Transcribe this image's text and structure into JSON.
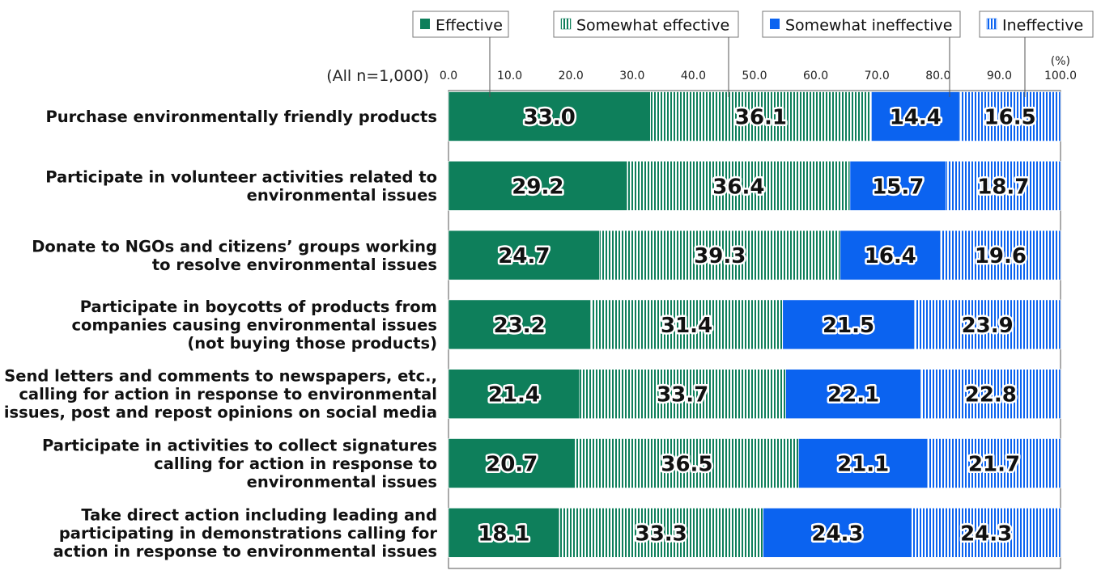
{
  "chart_data": {
    "type": "bar",
    "orientation": "horizontal",
    "stacked": true,
    "sample_label": "(All n=1,000)",
    "unit_label": "(%)",
    "xlim": [
      0,
      100
    ],
    "xticks": [
      "0.0",
      "10.0",
      "20.0",
      "30.0",
      "40.0",
      "50.0",
      "60.0",
      "70.0",
      "80.0",
      "90.0",
      "100.0"
    ],
    "legend_position": "top",
    "categories": [
      [
        "Purchase environmentally friendly products"
      ],
      [
        "Participate in volunteer activities related to",
        "environmental issues"
      ],
      [
        "Donate to NGOs and citizens’ groups working",
        "to resolve environmental issues"
      ],
      [
        "Participate in boycotts of products from",
        "companies causing environmental issues",
        "(not buying those products)"
      ],
      [
        "Send letters and comments to newspapers, etc.,",
        "calling for action in response to environmental",
        "issues, post and repost opinions on social media"
      ],
      [
        "Participate in activities to collect signatures",
        "calling for action in response to",
        "environmental issues"
      ],
      [
        "Take direct action including leading and",
        "participating in demonstrations calling for",
        "action in response to environmental issues"
      ]
    ],
    "series": [
      {
        "name": "Effective",
        "color": "#0e7f5b",
        "pattern": "solid",
        "values": [
          33.0,
          29.2,
          24.7,
          23.2,
          21.4,
          20.7,
          18.1
        ]
      },
      {
        "name": "Somewhat effective",
        "color": "#0e7f5b",
        "pattern": "stripes",
        "values": [
          36.1,
          36.4,
          39.3,
          31.4,
          33.7,
          36.5,
          33.3
        ]
      },
      {
        "name": "Somewhat ineffective",
        "color": "#0b63f0",
        "pattern": "solid",
        "values": [
          14.4,
          15.7,
          16.4,
          21.5,
          22.1,
          21.1,
          24.3
        ]
      },
      {
        "name": "Ineffective",
        "color": "#0b63f0",
        "pattern": "stripes",
        "values": [
          16.5,
          18.7,
          19.6,
          23.9,
          22.8,
          21.7,
          24.3
        ]
      }
    ]
  }
}
